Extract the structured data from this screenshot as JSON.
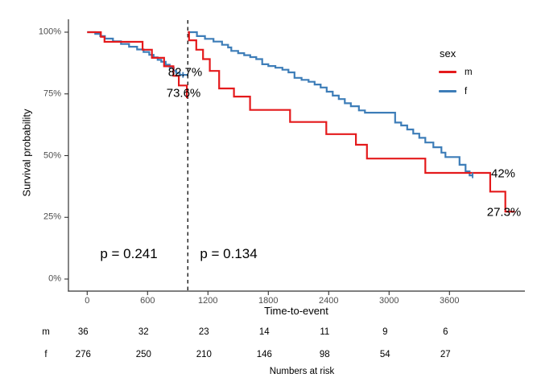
{
  "colors": {
    "m": "#E41A1C",
    "f": "#3D7DB8",
    "axis": "#333333",
    "tick_label": "#4d4d4d",
    "dashed_line": "#1a1a1a",
    "background": "#ffffff"
  },
  "y_axis": {
    "title": "Survival probability",
    "ticks": [
      "100%",
      "75%",
      "50%",
      "25%",
      "0%"
    ]
  },
  "x_axis": {
    "title": "Time-to-event",
    "ticks": [
      "0",
      "600",
      "1200",
      "1800",
      "2400",
      "3000",
      "3600"
    ]
  },
  "legend": {
    "title": "sex",
    "items": [
      {
        "label": "m",
        "color": "#E41A1C"
      },
      {
        "label": "f",
        "color": "#3D7DB8"
      }
    ]
  },
  "annotations": {
    "f_at_landmark": "82.7%",
    "m_at_landmark": "73.6%",
    "f_final": "42%",
    "m_final": "27.3%",
    "p_left": "p = 0.241",
    "p_right": "p = 0.134"
  },
  "risk_table": {
    "caption": "Numbers at risk",
    "rows": [
      {
        "label": "m",
        "counts": [
          "36",
          "32",
          "23",
          "14",
          "11",
          "9",
          "6"
        ]
      },
      {
        "label": "f",
        "counts": [
          "276",
          "250",
          "210",
          "146",
          "98",
          "54",
          "27"
        ]
      }
    ]
  },
  "chart_data": {
    "type": "line",
    "subtype": "kaplan-meier-step-landmark",
    "xlabel": "Time-to-event",
    "ylabel": "Survival probability",
    "xlim": [
      0,
      4250
    ],
    "ylim": [
      0,
      100
    ],
    "x_ticks": [
      0,
      600,
      1200,
      1800,
      2400,
      3000,
      3600
    ],
    "y_ticks_percent": [
      100,
      75,
      50,
      25,
      0
    ],
    "grid": false,
    "legend_position": "right",
    "landmark_time": 1000,
    "p_values": {
      "before_landmark": 0.241,
      "after_landmark": 0.134
    },
    "survival_at_landmark": {
      "m": 73.6,
      "f": 82.7
    },
    "survival_final": {
      "m": 27.3,
      "f": 42
    },
    "series": [
      {
        "name": "f",
        "color": "#3D7DB8",
        "segments": [
          {
            "steps": [
              [
                0,
                100
              ],
              [
                80,
                99.3
              ],
              [
                130,
                98.4
              ],
              [
                176,
                97.4
              ],
              [
                256,
                96.3
              ],
              [
                336,
                95.2
              ],
              [
                416,
                94.1
              ],
              [
                496,
                93.0
              ],
              [
                560,
                92.0
              ],
              [
                617,
                90.8
              ],
              [
                660,
                89.8
              ],
              [
                700,
                88.8
              ],
              [
                736,
                88.0
              ],
              [
                780,
                86.8
              ],
              [
                820,
                85.6
              ],
              [
                860,
                84.3
              ],
              [
                884,
                83.5
              ],
              [
                920,
                82.7
              ]
            ],
            "end": 1000
          },
          {
            "steps": [
              [
                1000,
                100
              ],
              [
                1090,
                98.4
              ],
              [
                1170,
                97.3
              ],
              [
                1255,
                96.2
              ],
              [
                1340,
                94.9
              ],
              [
                1400,
                93.8
              ],
              [
                1432,
                92.4
              ],
              [
                1500,
                91.5
              ],
              [
                1560,
                90.7
              ],
              [
                1620,
                89.9
              ],
              [
                1680,
                89.1
              ],
              [
                1739,
                87.0
              ],
              [
                1800,
                86.3
              ],
              [
                1870,
                85.6
              ],
              [
                1940,
                84.8
              ],
              [
                2000,
                83.7
              ],
              [
                2060,
                81.5
              ],
              [
                2130,
                80.7
              ],
              [
                2200,
                79.9
              ],
              [
                2260,
                78.8
              ],
              [
                2320,
                77.6
              ],
              [
                2380,
                75.9
              ],
              [
                2440,
                74.3
              ],
              [
                2500,
                72.9
              ],
              [
                2560,
                71.2
              ],
              [
                2620,
                70.0
              ],
              [
                2700,
                68.3
              ],
              [
                2760,
                67.4
              ],
              [
                3060,
                63.4
              ],
              [
                3120,
                62.2
              ],
              [
                3180,
                60.6
              ],
              [
                3240,
                58.9
              ],
              [
                3300,
                57.2
              ],
              [
                3360,
                55.3
              ],
              [
                3440,
                53.4
              ],
              [
                3520,
                51.2
              ],
              [
                3560,
                49.4
              ],
              [
                3700,
                46.3
              ],
              [
                3760,
                43.6
              ],
              [
                3800,
                42.0
              ]
            ],
            "end": 3838
          }
        ]
      },
      {
        "name": "m",
        "color": "#E41A1C",
        "segments": [
          {
            "steps": [
              [
                0,
                100
              ],
              [
                136,
                98.1
              ],
              [
                172,
                96.1
              ],
              [
                550,
                92.9
              ],
              [
                643,
                89.6
              ],
              [
                764,
                86.2
              ],
              [
                857,
                82.3
              ],
              [
                910,
                78.4
              ],
              [
                990,
                73.6
              ]
            ],
            "end": 1000
          },
          {
            "steps": [
              [
                1000,
                100
              ],
              [
                1012,
                96.7
              ],
              [
                1084,
                92.9
              ],
              [
                1151,
                89.1
              ],
              [
                1218,
                84.3
              ],
              [
                1311,
                77.2
              ],
              [
                1458,
                73.9
              ],
              [
                1618,
                68.5
              ],
              [
                2016,
                63.6
              ],
              [
                2376,
                58.7
              ],
              [
                2670,
                54.4
              ],
              [
                2780,
                48.8
              ],
              [
                3360,
                43.0
              ],
              [
                4005,
                35.4
              ],
              [
                4155,
                27.3
              ]
            ],
            "end": 4250
          }
        ]
      }
    ],
    "censor_marks": [
      {
        "series": "f",
        "t": 952,
        "p": 82.7
      },
      {
        "series": "f",
        "t": 3830,
        "p": 42.0
      }
    ]
  }
}
